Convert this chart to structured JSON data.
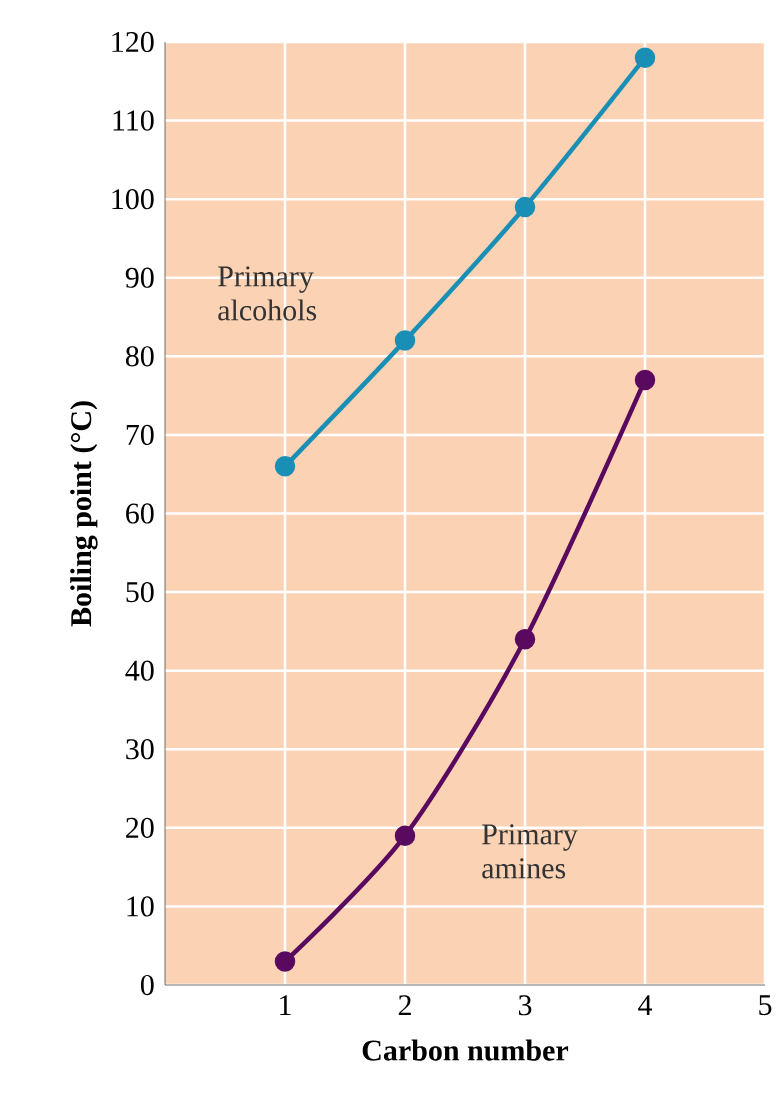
{
  "chart_data": {
    "type": "line",
    "xlabel": "Carbon number",
    "ylabel": "Boiling point (°C)",
    "x": [
      1,
      2,
      3,
      4
    ],
    "series": [
      {
        "name": "Primary alcohols",
        "color": "#1a8fb5",
        "values": [
          66,
          82,
          99,
          118
        ]
      },
      {
        "name": "Primary amines",
        "color": "#5a0a5e",
        "values": [
          3,
          19,
          44,
          77
        ]
      }
    ],
    "xlim": [
      0,
      5
    ],
    "ylim": [
      0,
      120
    ],
    "xticks": [
      1,
      2,
      3,
      4,
      5
    ],
    "yticks": [
      0,
      10,
      20,
      30,
      40,
      50,
      60,
      70,
      80,
      90,
      100,
      110,
      120
    ],
    "grid": true,
    "marker": "circle",
    "line_style": "solid",
    "legend": false
  }
}
